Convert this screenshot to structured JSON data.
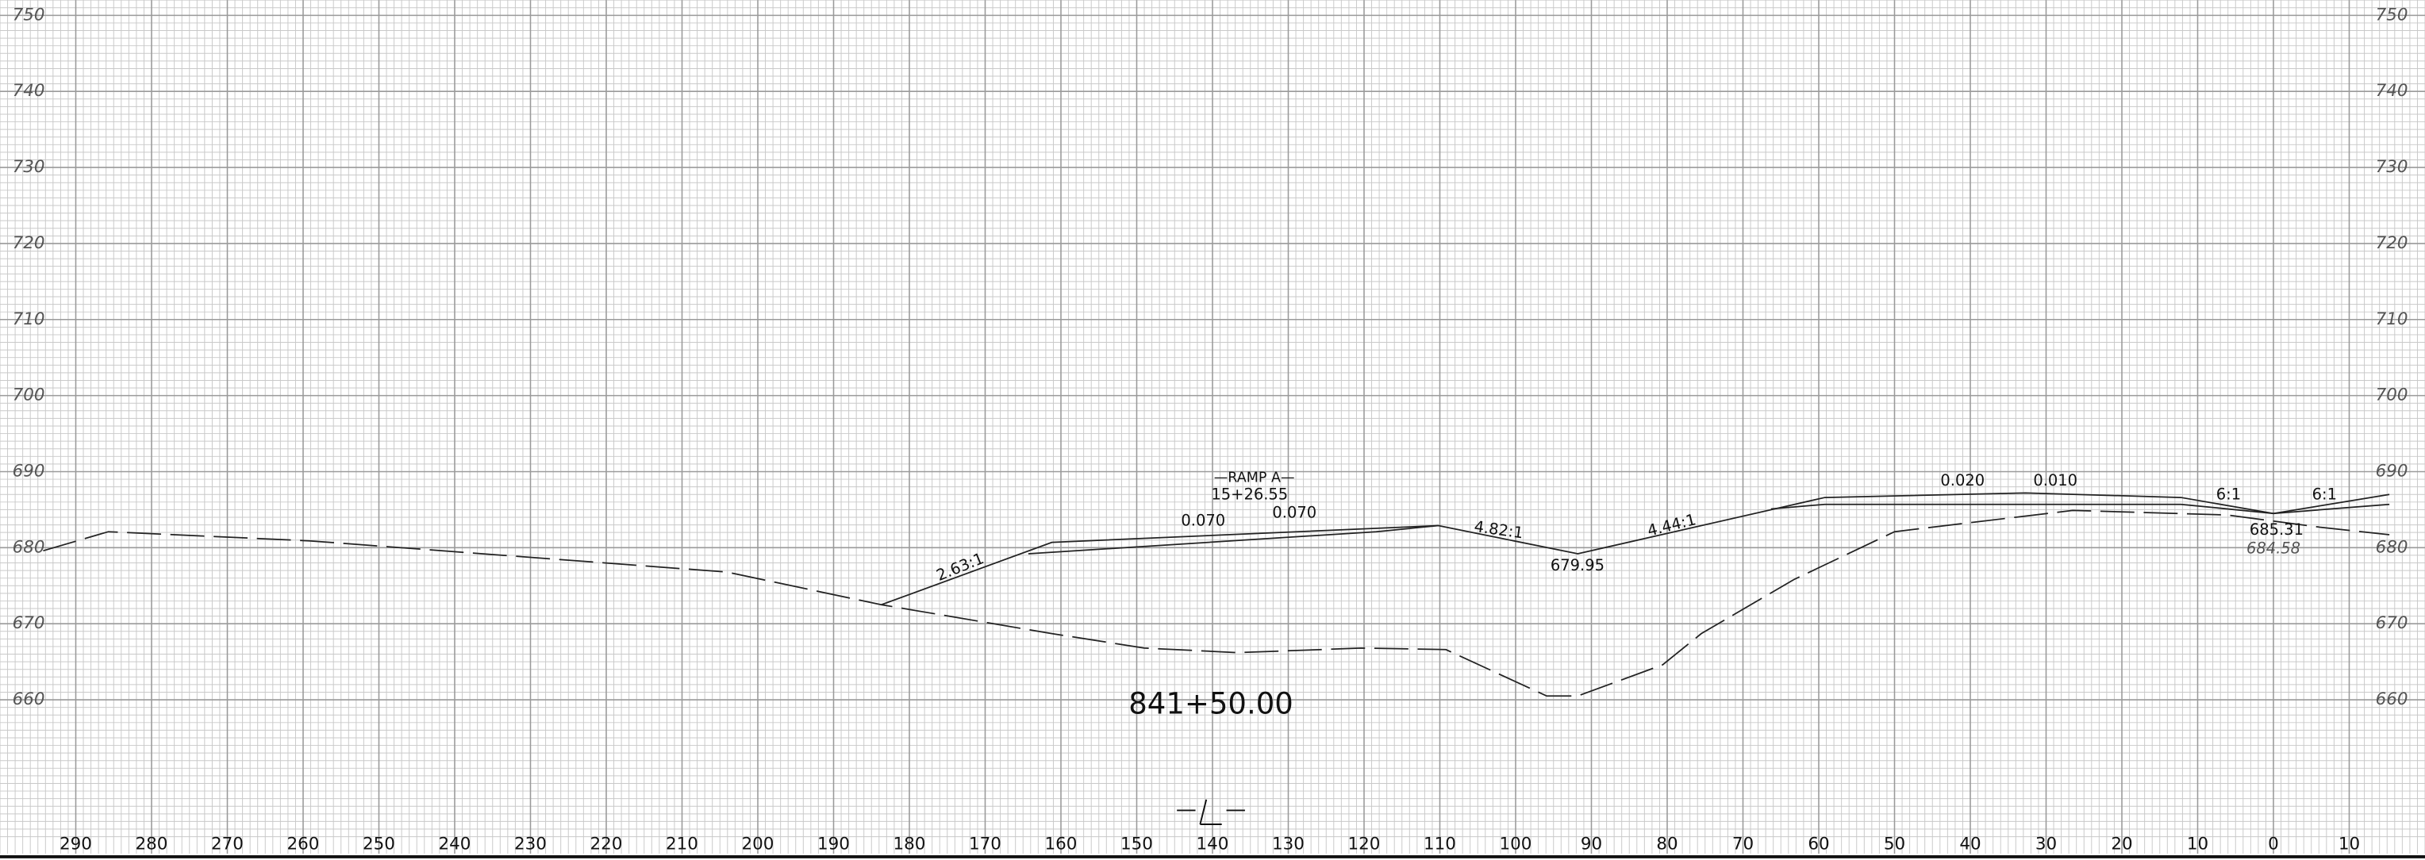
{
  "chart_data": {
    "type": "line",
    "xlim": [
      300,
      -20
    ],
    "ylim": [
      642,
      752
    ],
    "xticks": [
      290,
      280,
      270,
      260,
      250,
      240,
      230,
      220,
      210,
      200,
      190,
      180,
      170,
      160,
      150,
      140,
      130,
      120,
      110,
      100,
      90,
      80,
      70,
      60,
      50,
      40,
      30,
      20,
      10,
      0,
      {
        "value": -10,
        "label": "10"
      }
    ],
    "yticks": [
      660,
      670,
      680,
      690,
      700,
      710,
      720,
      730,
      740,
      750
    ],
    "grid": true,
    "series": [
      {
        "color": "#222222",
        "dashed": true,
        "x": [
          294.3,
          285.7,
          259.2,
          204.1,
          183.7,
          161.2,
          149.0,
          136.7,
          120.4,
          109.2,
          95.9,
          91.8,
          80.6,
          75.5,
          63.3,
          50.0,
          26.5,
          6.1,
          -6.1,
          -15.3
        ],
        "values": [
          679.6,
          682.1,
          680.9,
          676.8,
          672.5,
          668.7,
          666.8,
          666.2,
          666.8,
          666.6,
          660.5,
          660.5,
          664.6,
          668.7,
          675.8,
          682.1,
          684.9,
          684.3,
          682.7,
          681.7
        ]
      },
      {
        "color": "#222222",
        "dashed": false,
        "x": [
          183.7,
          161.2,
          110.2,
          91.8,
          59.2,
          32.7,
          12.2,
          0,
          -15.3
        ],
        "values": [
          672.5,
          680.7,
          682.9,
          679.2,
          686.6,
          687.2,
          686.6,
          684.5,
          687.0
        ]
      },
      {
        "color": "#222222",
        "dashed": false,
        "x": [
          164.3,
          118.4,
          110.2,
          null,
          66.3,
          59.2,
          12.2,
          0,
          -15.3
        ],
        "values": [
          679.2,
          682.1,
          682.9,
          null,
          685.1,
          685.7,
          685.7,
          684.5,
          685.7
        ]
      }
    ],
    "annotations": [
      "—RAMP A—",
      "15+26.55",
      "0.070",
      "0.070",
      "2.63:1",
      "4.82:1",
      "4.44:1",
      "679.95",
      "0.020",
      "0.010",
      "6:1",
      "6:1",
      "685.31",
      "684.58",
      "841+50.00"
    ]
  }
}
